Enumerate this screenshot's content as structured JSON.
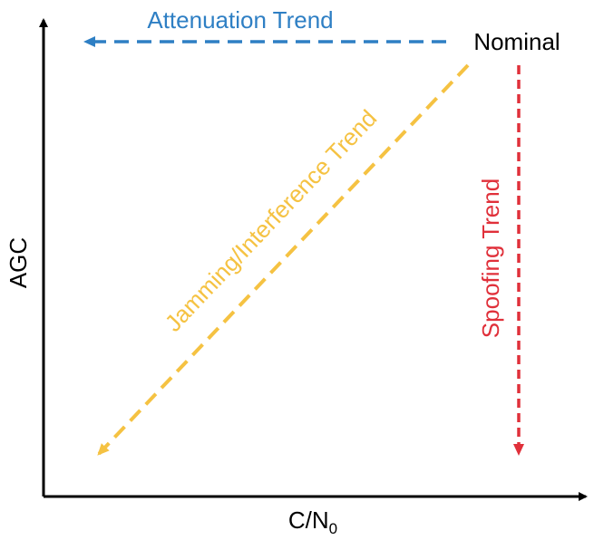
{
  "axes": {
    "y_label": "AGC",
    "x_label": {
      "main": "C/N",
      "subscript": "0"
    }
  },
  "nominal": {
    "label": "Nominal"
  },
  "trends": {
    "attenuation": {
      "label": "Attenuation Trend"
    },
    "jamming": {
      "label": "Jamming/Interference Trend"
    },
    "spoofing": {
      "label": "Spoofing Trend"
    }
  }
}
